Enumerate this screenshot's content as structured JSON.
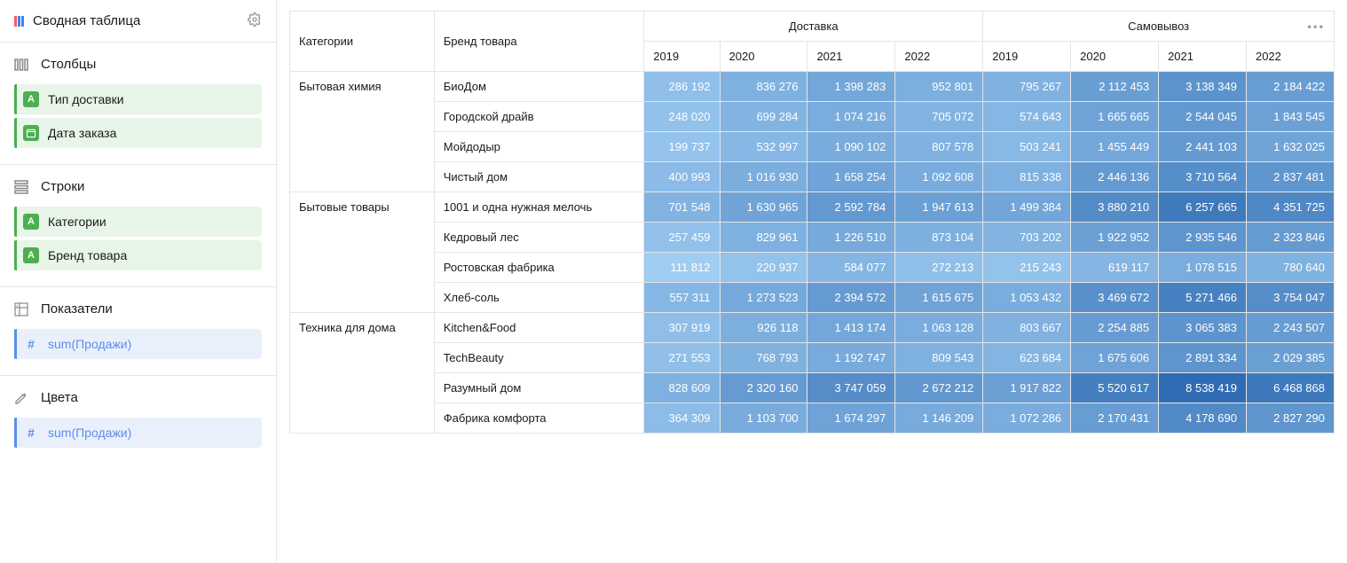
{
  "sidebar": {
    "title": "Сводная таблица",
    "sections": {
      "columns": {
        "label": "Столбцы",
        "items": [
          "Тип доставки",
          "Дата заказа"
        ]
      },
      "rows": {
        "label": "Строки",
        "items": [
          "Категории",
          "Бренд товара"
        ]
      },
      "measures": {
        "label": "Показатели",
        "items": [
          "sum(Продажи)"
        ]
      },
      "colors": {
        "label": "Цвета",
        "items": [
          "sum(Продажи)"
        ]
      }
    }
  },
  "table": {
    "col1_header": "Категории",
    "col2_header": "Бренд товара",
    "groups": [
      "Доставка",
      "Самовывоз"
    ],
    "years": [
      "2019",
      "2020",
      "2021",
      "2022"
    ],
    "heatmap": {
      "min": 111812,
      "max": 8538419,
      "color_light": "#a0cdf2",
      "color_dark": "#2f6cb3"
    },
    "body": [
      {
        "category": "Бытовая химия",
        "brands": [
          {
            "name": "БиоДом",
            "values": [
              286192,
              836276,
              1398283,
              952801,
              795267,
              2112453,
              3138349,
              2184422
            ]
          },
          {
            "name": "Городской драйв",
            "values": [
              248020,
              699284,
              1074216,
              705072,
              574643,
              1665665,
              2544045,
              1843545
            ]
          },
          {
            "name": "Мойдодыр",
            "values": [
              199737,
              532997,
              1090102,
              807578,
              503241,
              1455449,
              2441103,
              1632025
            ]
          },
          {
            "name": "Чистый дом",
            "values": [
              400993,
              1016930,
              1658254,
              1092608,
              815338,
              2446136,
              3710564,
              2837481
            ]
          }
        ]
      },
      {
        "category": "Бытовые товары",
        "brands": [
          {
            "name": "1001 и одна нужная мелочь",
            "values": [
              701548,
              1630965,
              2592784,
              1947613,
              1499384,
              3880210,
              6257665,
              4351725
            ]
          },
          {
            "name": "Кедровый лес",
            "values": [
              257459,
              829961,
              1226510,
              873104,
              703202,
              1922952,
              2935546,
              2323846
            ]
          },
          {
            "name": "Ростовская фабрика",
            "values": [
              111812,
              220937,
              584077,
              272213,
              215243,
              619117,
              1078515,
              780640
            ]
          },
          {
            "name": "Хлеб-соль",
            "values": [
              557311,
              1273523,
              2394572,
              1615675,
              1053432,
              3469672,
              5271466,
              3754047
            ]
          }
        ]
      },
      {
        "category": "Техника для дома",
        "brands": [
          {
            "name": "Kitchen&Food",
            "values": [
              307919,
              926118,
              1413174,
              1063128,
              803667,
              2254885,
              3065383,
              2243507
            ]
          },
          {
            "name": "TechBeauty",
            "values": [
              271553,
              768793,
              1192747,
              809543,
              623684,
              1675606,
              2891334,
              2029385
            ]
          },
          {
            "name": "Разумный дом",
            "values": [
              828609,
              2320160,
              3747059,
              2672212,
              1917822,
              5520617,
              8538419,
              6468868
            ]
          },
          {
            "name": "Фабрика комфорта",
            "values": [
              364309,
              1103700,
              1674297,
              1146209,
              1072286,
              2170431,
              4178690,
              2827290
            ]
          }
        ]
      }
    ]
  }
}
